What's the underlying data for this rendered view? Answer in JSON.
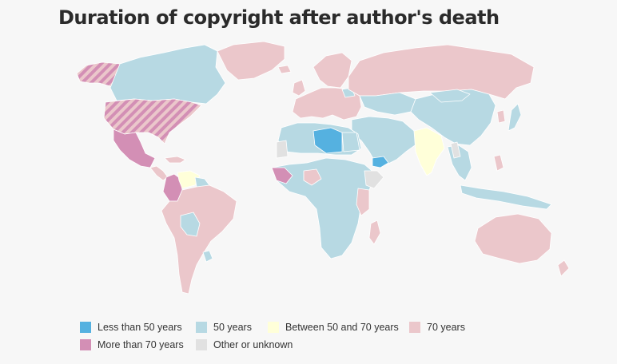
{
  "title": "Duration of copyright after author's death",
  "colors": {
    "less_than_50": "#55b1e0",
    "fifty": "#b7d9e3",
    "between_50_70": "#ffffd9",
    "seventy": "#ebc7cb",
    "more_than_70": "#d38fb5",
    "other": "#e1e1e1",
    "border": "#ffffff",
    "background": "#f7f7f7"
  },
  "legend": [
    {
      "label": "Less than 50 years",
      "color": "#55b1e0"
    },
    {
      "label": "50 years",
      "color": "#b7d9e3"
    },
    {
      "label": "Between 50 and 70 years",
      "color": "#ffffd9"
    },
    {
      "label": "70 years",
      "color": "#ebc7cb"
    },
    {
      "label": "More than 70 years",
      "color": "#d38fb5"
    },
    {
      "label": "Other or unknown",
      "color": "#e1e1e1"
    }
  ]
}
